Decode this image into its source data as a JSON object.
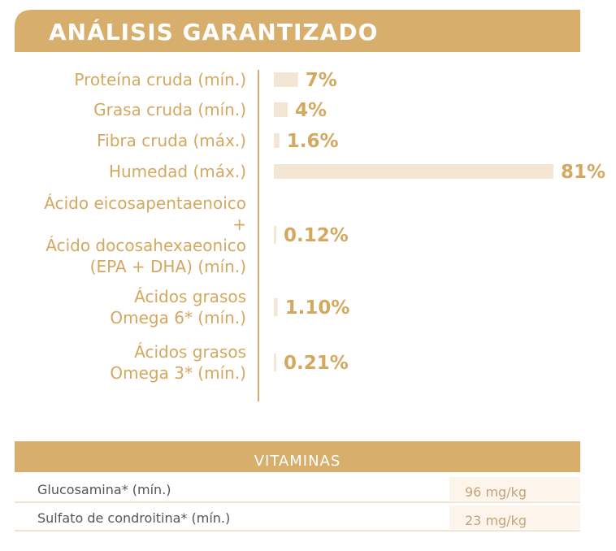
{
  "colors": {
    "accent": "#d7ae6b",
    "bar": "#f3e6d4",
    "label": "#d4a85f",
    "value_cell": "#fdf5ec",
    "divider": "#e3c99e"
  },
  "chart_data": {
    "type": "bar",
    "orientation": "horizontal",
    "title": "ANÁLISIS GARANTIZADO",
    "unit": "%",
    "xlim": [
      0,
      81
    ],
    "items": [
      {
        "label_lines": [
          "Proteína cruda (mín.)"
        ],
        "value": 7,
        "value_label": "7%"
      },
      {
        "label_lines": [
          "Grasa cruda (mín.)"
        ],
        "value": 4,
        "value_label": "4%"
      },
      {
        "label_lines": [
          "Fibra cruda (máx.)"
        ],
        "value": 1.6,
        "value_label": "1.6%"
      },
      {
        "label_lines": [
          "Humedad (máx.)"
        ],
        "value": 81,
        "value_label": "81%"
      },
      {
        "label_lines": [
          "Ácido eicosapentaenoico",
          "+",
          "Ácido docosahexaeonico",
          "(EPA + DHA) (mín.)"
        ],
        "value": 0.12,
        "value_label": "0.12%"
      },
      {
        "label_lines": [
          "Ácidos grasos",
          "Omega 6* (mín.)"
        ],
        "value": 1.1,
        "value_label": "1.10%"
      },
      {
        "label_lines": [
          "Ácidos grasos",
          "Omega 3* (mín.)"
        ],
        "value": 0.21,
        "value_label": "0.21%"
      }
    ]
  },
  "vitamins": {
    "header": "VITAMINAS",
    "rows": [
      {
        "label": "Glucosamina* (mín.)",
        "value": "96 mg/kg"
      },
      {
        "label": "Sulfato de condroitina* (mín.)",
        "value": "23 mg/kg"
      }
    ]
  }
}
